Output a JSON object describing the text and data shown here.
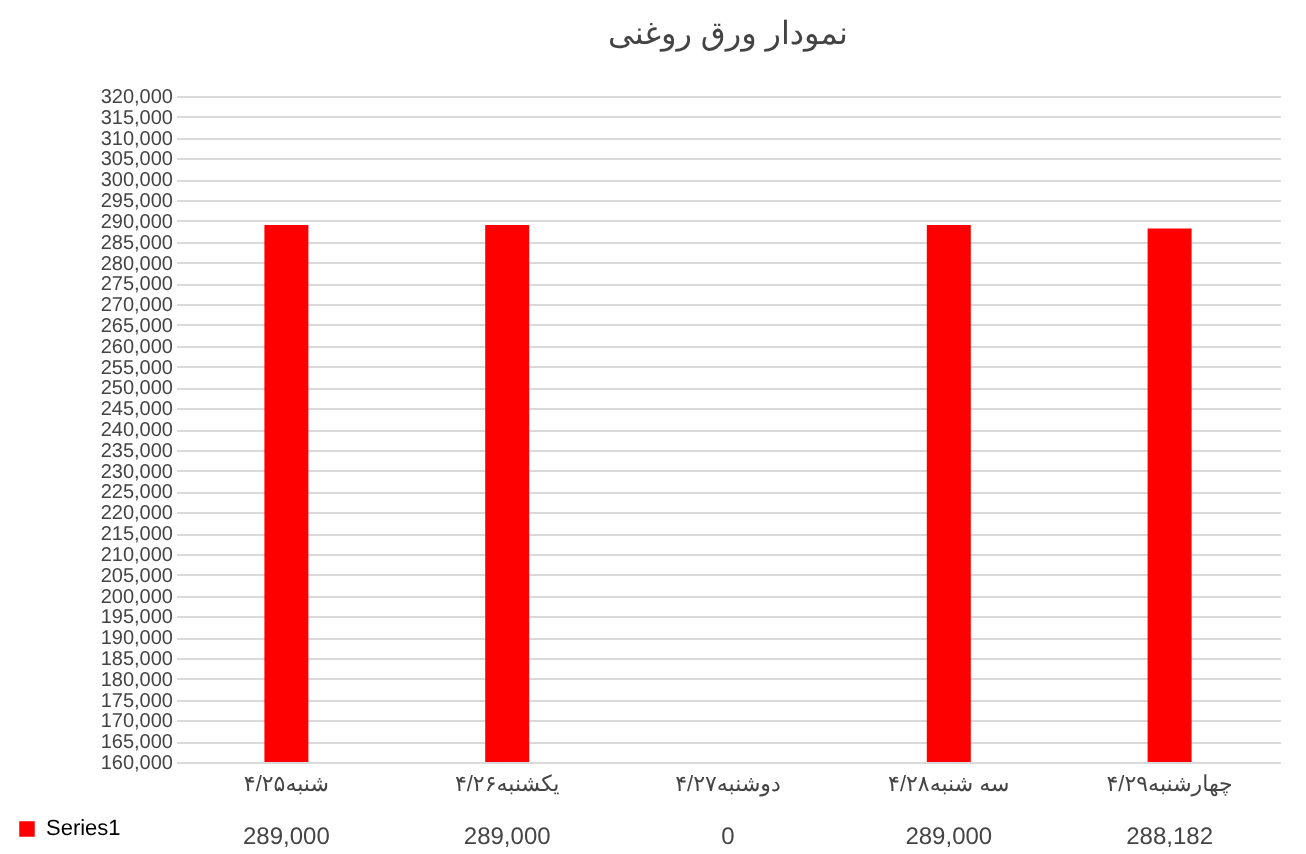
{
  "chart_data": {
    "type": "bar",
    "title": "نمودار ورق روغنی",
    "categories": [
      "شنبه۴/۲۵",
      "یکشنبه۴/۲۶",
      "دوشنبه۴/۲۷",
      "سه شنبه۴/۲۸",
      "چهارشنبه۴/۲۹"
    ],
    "series": [
      {
        "name": "Series1",
        "color": "#ff0000",
        "values": [
          289000,
          289000,
          null,
          289000,
          288182
        ],
        "value_labels": [
          "289,000",
          "289,000",
          "0",
          "289,000",
          "288,182"
        ]
      }
    ],
    "ylim": [
      160000,
      320000
    ],
    "yticks": [
      {
        "value": 160000,
        "label": "160,000"
      },
      {
        "value": 165000,
        "label": "165,000"
      },
      {
        "value": 170000,
        "label": "170,000"
      },
      {
        "value": 175000,
        "label": "175,000"
      },
      {
        "value": 180000,
        "label": "180,000"
      },
      {
        "value": 185000,
        "label": "185,000"
      },
      {
        "value": 190000,
        "label": "190,000"
      },
      {
        "value": 195000,
        "label": "195,000"
      },
      {
        "value": 200000,
        "label": "200,000"
      },
      {
        "value": 205000,
        "label": "205,000"
      },
      {
        "value": 210000,
        "label": "210,000"
      },
      {
        "value": 215000,
        "label": "215,000"
      },
      {
        "value": 220000,
        "label": "220,000"
      },
      {
        "value": 225000,
        "label": "225,000"
      },
      {
        "value": 230000,
        "label": "230,000"
      },
      {
        "value": 235000,
        "label": "235,000"
      },
      {
        "value": 240000,
        "label": "240,000"
      },
      {
        "value": 245000,
        "label": "245,000"
      },
      {
        "value": 250000,
        "label": "250,000"
      },
      {
        "value": 255000,
        "label": "255,000"
      },
      {
        "value": 260000,
        "label": "260,000"
      },
      {
        "value": 265000,
        "label": "265,000"
      },
      {
        "value": 270000,
        "label": "270,000"
      },
      {
        "value": 275000,
        "label": "275,000"
      },
      {
        "value": 280000,
        "label": "280,000"
      },
      {
        "value": 285000,
        "label": "285,000"
      },
      {
        "value": 290000,
        "label": "290,000"
      },
      {
        "value": 295000,
        "label": "295,000"
      },
      {
        "value": 300000,
        "label": "300,000"
      },
      {
        "value": 305000,
        "label": "305,000"
      },
      {
        "value": 310000,
        "label": "310,000"
      },
      {
        "value": 315000,
        "label": "315,000"
      },
      {
        "value": 320000,
        "label": "320,000"
      }
    ],
    "grid": true,
    "legend": "bottom left"
  }
}
